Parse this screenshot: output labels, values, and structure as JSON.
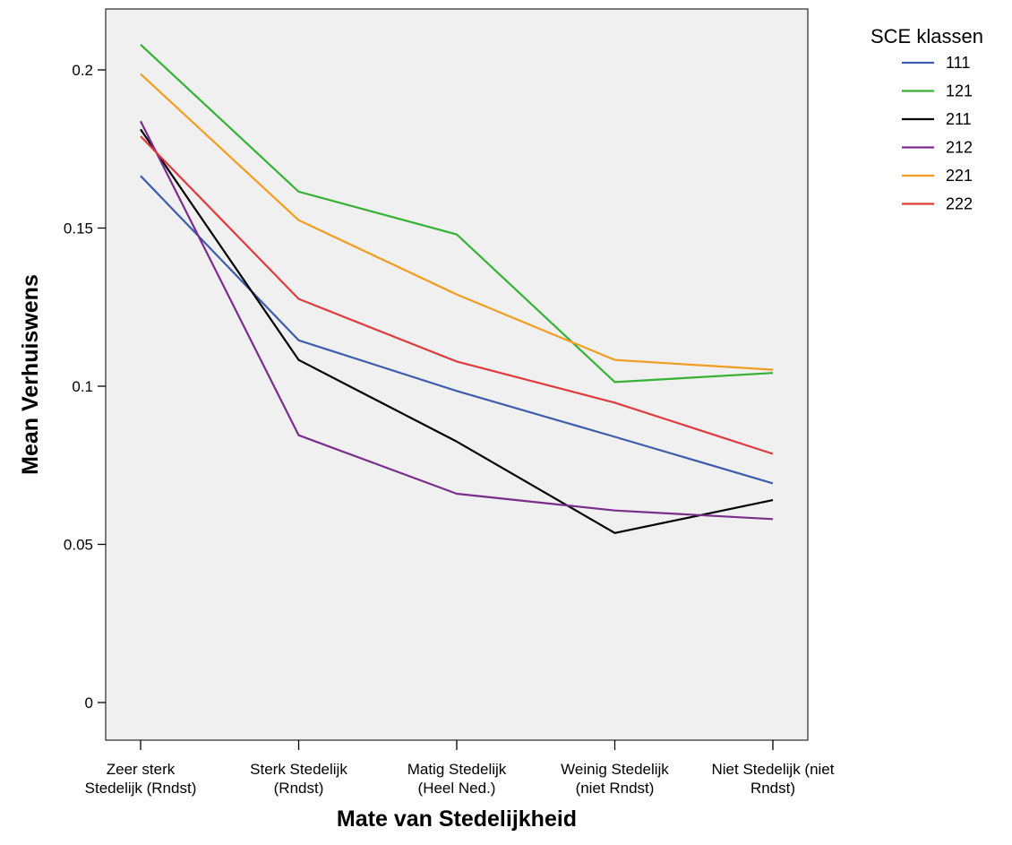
{
  "chart_data": {
    "type": "line",
    "xlabel": "Mate van Stedelijkheid",
    "ylabel": "Mean Verhuiswens",
    "ylim": [
      0,
      0.22
    ],
    "yticks": [
      "0",
      "0.05",
      "0.1",
      "0.15",
      "0.2"
    ],
    "grid": false,
    "legend_title": "SCE klassen",
    "legend_position": "top-right",
    "plot_background": "#f0f0f0",
    "categories": [
      [
        "Zeer sterk",
        "Stedelijk (Rndst)"
      ],
      [
        "Sterk Stedelijk",
        "(Rndst)"
      ],
      [
        "Matig Stedelijk",
        "(Heel Ned.)"
      ],
      [
        "Weinig Stedelijk",
        "(niet Rndst)"
      ],
      [
        "Niet Stedelijk (niet",
        "Rndst)"
      ]
    ],
    "series": [
      {
        "name": "111",
        "color": "#3c5dae",
        "values": [
          0.1665,
          0.1145,
          0.0985,
          0.084,
          0.0693
        ]
      },
      {
        "name": "121",
        "color": "#33b233",
        "values": [
          0.208,
          0.1615,
          0.148,
          0.1013,
          0.1042
        ]
      },
      {
        "name": "211",
        "color": "#000000",
        "values": [
          0.1812,
          0.1083,
          0.0825,
          0.0536,
          0.064
        ]
      },
      {
        "name": "212",
        "color": "#7b2d8b",
        "values": [
          0.1838,
          0.0845,
          0.066,
          0.0607,
          0.058
        ]
      },
      {
        "name": "221",
        "color": "#f39c1f",
        "values": [
          0.1987,
          0.1525,
          0.129,
          0.1083,
          0.1052
        ]
      },
      {
        "name": "222",
        "color": "#e03a3c",
        "values": [
          0.179,
          0.1276,
          0.1078,
          0.0948,
          0.0786
        ]
      }
    ]
  }
}
